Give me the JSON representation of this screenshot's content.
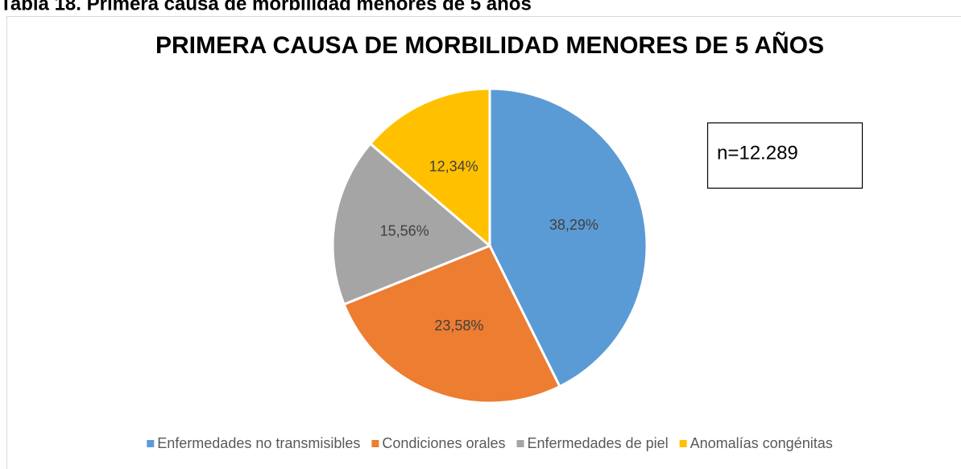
{
  "caption": "Tabla 18. Primera causa de morbilidad menores de 5 años",
  "chart_data": {
    "type": "pie",
    "title": "PRIMERA CAUSA DE MORBILIDAD MENORES DE 5 AÑOS",
    "annotation": "n=12.289",
    "categories": [
      "Enfermedades no transmisibles",
      "Condiciones orales",
      "Enfermedades de piel",
      "Anomalías congénitas"
    ],
    "values": [
      38.29,
      23.58,
      15.56,
      12.34
    ],
    "value_labels": [
      "38,29%",
      "23,58%",
      "15,56%",
      "12,34%"
    ],
    "colors": [
      "#5b9bd5",
      "#ed7d31",
      "#a5a5a5",
      "#ffc000"
    ],
    "legend": "bottom"
  }
}
